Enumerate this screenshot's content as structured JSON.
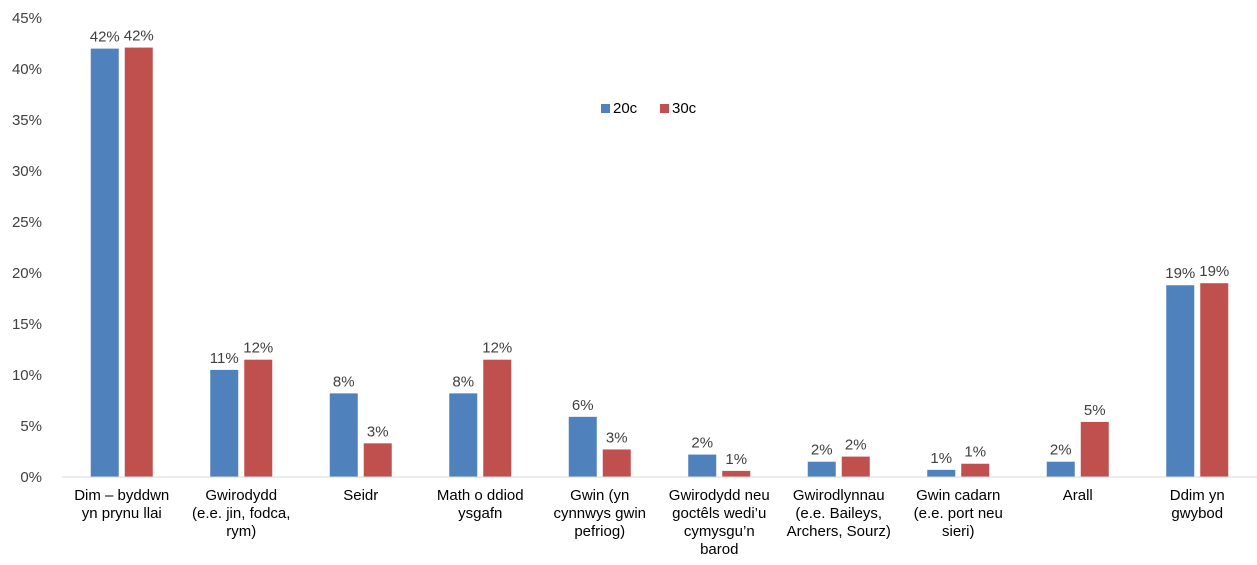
{
  "chart_data": {
    "type": "bar",
    "title": "",
    "xlabel": "",
    "ylabel": "",
    "ylim": [
      0,
      45
    ],
    "y_ticks": [
      "0%",
      "5%",
      "10%",
      "15%",
      "20%",
      "25%",
      "30%",
      "35%",
      "40%",
      "45%"
    ],
    "grid": false,
    "legend_position": "top-center",
    "categories": [
      [
        "Dim – byddwn",
        "yn prynu llai"
      ],
      [
        "Gwirodydd",
        "(e.e. jin, fodca,",
        "rym)"
      ],
      [
        "Seidr"
      ],
      [
        "Math o ddiod",
        "ysgafn"
      ],
      [
        "Gwin (yn",
        "cynnwys gwin",
        "pefriog)"
      ],
      [
        "Gwirodydd neu",
        "goctêls wedi’u",
        "cymysgu’n",
        "barod"
      ],
      [
        "Gwirodlynnau",
        "(e.e. Baileys,",
        "Archers, Sourz)"
      ],
      [
        "Gwin cadarn",
        "(e.e. port neu",
        "sieri)"
      ],
      [
        "Arall"
      ],
      [
        "Ddim yn",
        "gwybod"
      ]
    ],
    "series": [
      {
        "name": "20c",
        "color": "#4f81bd",
        "values": [
          42,
          10.5,
          8.2,
          8.2,
          5.9,
          2.2,
          1.5,
          0.7,
          1.5,
          18.8
        ],
        "labels": [
          "42%",
          "11%",
          "8%",
          "8%",
          "6%",
          "2%",
          "2%",
          "1%",
          "2%",
          "19%"
        ]
      },
      {
        "name": "30c",
        "color": "#c0504d",
        "values": [
          42.1,
          11.5,
          3.3,
          11.5,
          2.7,
          0.6,
          2.0,
          1.3,
          5.4,
          19.0
        ],
        "labels": [
          "42%",
          "12%",
          "3%",
          "12%",
          "3%",
          "1%",
          "2%",
          "1%",
          "5%",
          "19%"
        ]
      }
    ]
  }
}
